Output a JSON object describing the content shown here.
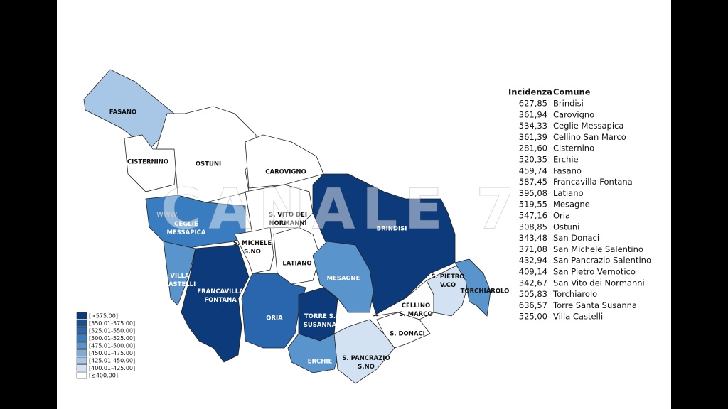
{
  "map": {
    "watermark": "CANALE 7",
    "watermark_url": "www.",
    "regions": [
      {
        "label": "FASANO"
      },
      {
        "label": "CISTERNINO"
      },
      {
        "label": "OSTUNI"
      },
      {
        "label": "CAROVIGNO"
      },
      {
        "label": "BRINDISI"
      },
      {
        "label": "CEGLIE MESSAPICA"
      },
      {
        "label": "S. VITO DEI NORMANNI"
      },
      {
        "label": "S. MICHELE S.NO"
      },
      {
        "label": "LATIANO"
      },
      {
        "label": "VILLA CASTELLI"
      },
      {
        "label": "FRANCAVILLA FONTANA"
      },
      {
        "label": "ORIA"
      },
      {
        "label": "TORRE S. SUSANNA"
      },
      {
        "label": "MESAGNE"
      },
      {
        "label": "ERCHIE"
      },
      {
        "label": "S. PANCRAZIO S.NO"
      },
      {
        "label": "S. DONACI"
      },
      {
        "label": "CELLINO S. MARCO"
      },
      {
        "label": "S. PIETRO V.CO"
      },
      {
        "label": "TORCHIAROLO"
      }
    ],
    "legend": [
      "[>575.00]",
      "[550.01-575.00]",
      "[525.01-550.00]",
      "[500.01-525.00]",
      "[475.01-500.00]",
      "[450.01-475.00]",
      "[425.01-450.00]",
      "[400.01-425.00]",
      "[≤400.00]"
    ]
  },
  "table": {
    "header": [
      "Incidenza",
      "Comune"
    ],
    "rows": [
      [
        "627,85",
        "Brindisi"
      ],
      [
        "361,94",
        "Carovigno"
      ],
      [
        "534,33",
        "Ceglie Messapica"
      ],
      [
        "361,39",
        "Cellino San Marco"
      ],
      [
        "281,60",
        "Cisternino"
      ],
      [
        "520,35",
        "Erchie"
      ],
      [
        "459,74",
        "Fasano"
      ],
      [
        "587,45",
        "Francavilla Fontana"
      ],
      [
        "395,08",
        "Latiano"
      ],
      [
        "519,55",
        "Mesagne"
      ],
      [
        "547,16",
        "Oria"
      ],
      [
        "308,85",
        "Ostuni"
      ],
      [
        "343,48",
        "San Donaci"
      ],
      [
        "371,08",
        "San Michele Salentino"
      ],
      [
        "432,94",
        "San Pancrazio Salentino"
      ],
      [
        "409,14",
        "San Pietro Vernotico"
      ],
      [
        "342,67",
        "San Vito dei Normanni"
      ],
      [
        "505,83",
        "Torchiarolo"
      ],
      [
        "636,57",
        "Torre Santa Susanna"
      ],
      [
        "525,00",
        "Villa Castelli"
      ]
    ]
  }
}
